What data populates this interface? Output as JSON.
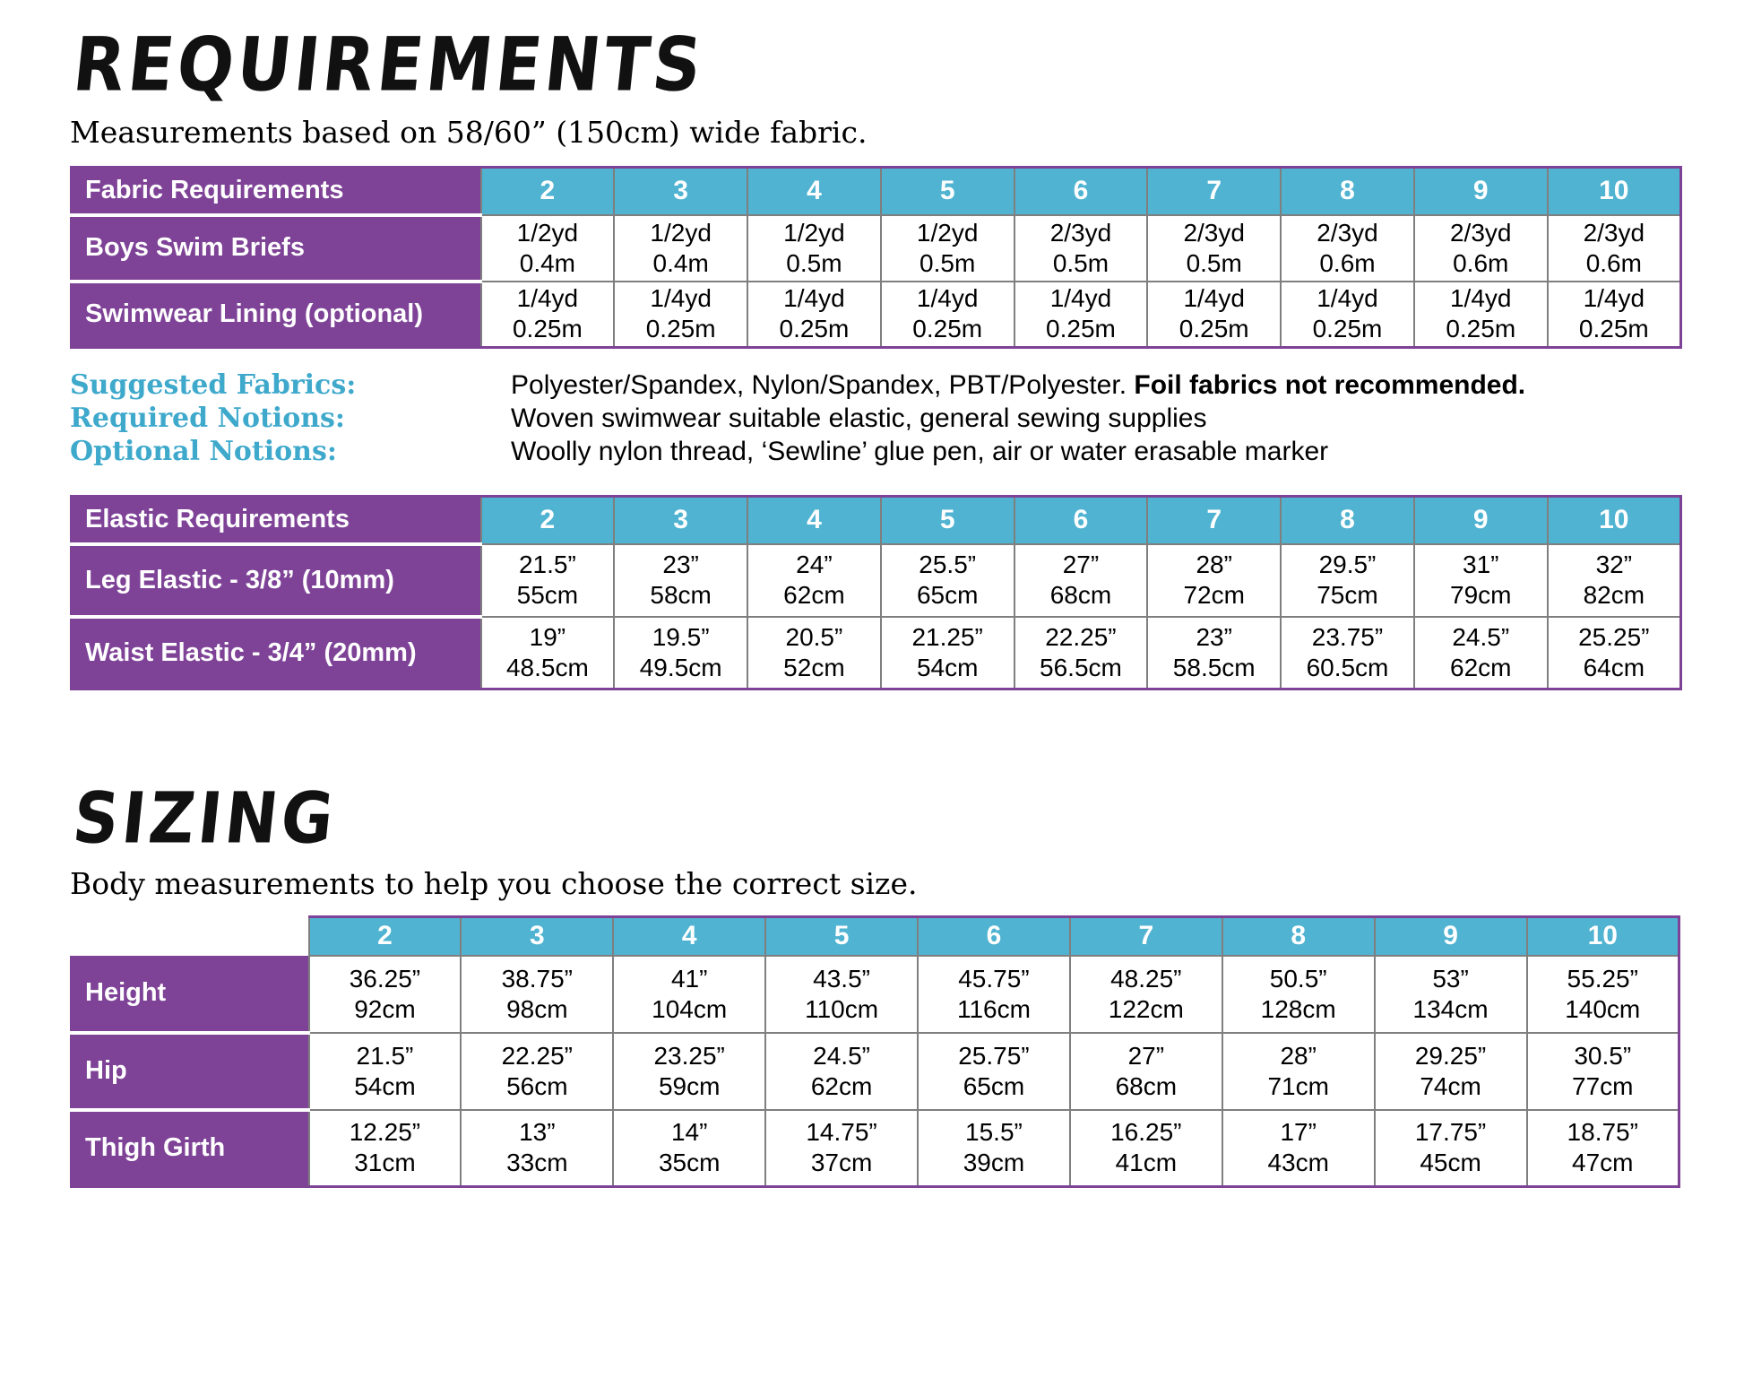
{
  "colors": {
    "purple": "#7e4397",
    "teal": "#4fb3d1",
    "label_teal": "#3fa9cc",
    "border_gray": "#7f7f7f"
  },
  "requirements": {
    "title": "REQUIREMENTS",
    "subtitle": "Measurements based on 58/60” (150cm) wide fabric."
  },
  "sizes": [
    "2",
    "3",
    "4",
    "5",
    "6",
    "7",
    "8",
    "9",
    "10"
  ],
  "fabric_table": {
    "header": "Fabric Requirements",
    "rows": [
      {
        "label": "Boys Swim Briefs",
        "cells": [
          [
            "1/2yd",
            "0.4m"
          ],
          [
            "1/2yd",
            "0.4m"
          ],
          [
            "1/2yd",
            "0.5m"
          ],
          [
            "1/2yd",
            "0.5m"
          ],
          [
            "2/3yd",
            "0.5m"
          ],
          [
            "2/3yd",
            "0.5m"
          ],
          [
            "2/3yd",
            "0.6m"
          ],
          [
            "2/3yd",
            "0.6m"
          ],
          [
            "2/3yd",
            "0.6m"
          ]
        ]
      },
      {
        "label": "Swimwear Lining (optional)",
        "cells": [
          [
            "1/4yd",
            "0.25m"
          ],
          [
            "1/4yd",
            "0.25m"
          ],
          [
            "1/4yd",
            "0.25m"
          ],
          [
            "1/4yd",
            "0.25m"
          ],
          [
            "1/4yd",
            "0.25m"
          ],
          [
            "1/4yd",
            "0.25m"
          ],
          [
            "1/4yd",
            "0.25m"
          ],
          [
            "1/4yd",
            "0.25m"
          ],
          [
            "1/4yd",
            "0.25m"
          ]
        ]
      }
    ]
  },
  "notions": [
    {
      "label": "Suggested Fabrics:",
      "text": "Polyester/Spandex, Nylon/Spandex, PBT/Polyester.  ",
      "bold": "Foil fabrics not recommended."
    },
    {
      "label": "Required Notions:",
      "text": "Woven swimwear suitable elastic, general sewing supplies",
      "bold": ""
    },
    {
      "label": "Optional Notions:",
      "text": "Woolly nylon thread, ‘Sewline’ glue pen, air or water erasable marker",
      "bold": ""
    }
  ],
  "elastic_table": {
    "header": "Elastic Requirements",
    "rows": [
      {
        "label": "Leg Elastic - 3/8” (10mm)",
        "cells": [
          [
            "21.5”",
            "55cm"
          ],
          [
            "23”",
            "58cm"
          ],
          [
            "24”",
            "62cm"
          ],
          [
            "25.5”",
            "65cm"
          ],
          [
            "27”",
            "68cm"
          ],
          [
            "28”",
            "72cm"
          ],
          [
            "29.5”",
            "75cm"
          ],
          [
            "31”",
            "79cm"
          ],
          [
            "32”",
            "82cm"
          ]
        ]
      },
      {
        "label": "Waist Elastic - 3/4” (20mm)",
        "cells": [
          [
            "19”",
            "48.5cm"
          ],
          [
            "19.5”",
            "49.5cm"
          ],
          [
            "20.5”",
            "52cm"
          ],
          [
            "21.25”",
            "54cm"
          ],
          [
            "22.25”",
            "56.5cm"
          ],
          [
            "23”",
            "58.5cm"
          ],
          [
            "23.75”",
            "60.5cm"
          ],
          [
            "24.5”",
            "62cm"
          ],
          [
            "25.25”",
            "64cm"
          ]
        ]
      }
    ]
  },
  "sizing": {
    "title": "SIZING",
    "subtitle": "Body measurements to help you choose the correct size."
  },
  "sizing_table": {
    "rows": [
      {
        "label": "Height",
        "cells": [
          [
            "36.25”",
            "92cm"
          ],
          [
            "38.75”",
            "98cm"
          ],
          [
            "41”",
            "104cm"
          ],
          [
            "43.5”",
            "110cm"
          ],
          [
            "45.75”",
            "116cm"
          ],
          [
            "48.25”",
            "122cm"
          ],
          [
            "50.5”",
            "128cm"
          ],
          [
            "53”",
            "134cm"
          ],
          [
            "55.25”",
            "140cm"
          ]
        ]
      },
      {
        "label": "Hip",
        "cells": [
          [
            "21.5”",
            "54cm"
          ],
          [
            "22.25”",
            "56cm"
          ],
          [
            "23.25”",
            "59cm"
          ],
          [
            "24.5”",
            "62cm"
          ],
          [
            "25.75”",
            "65cm"
          ],
          [
            "27”",
            "68cm"
          ],
          [
            "28”",
            "71cm"
          ],
          [
            "29.25”",
            "74cm"
          ],
          [
            "30.5”",
            "77cm"
          ]
        ]
      },
      {
        "label": "Thigh Girth",
        "cells": [
          [
            "12.25”",
            "31cm"
          ],
          [
            "13”",
            "33cm"
          ],
          [
            "14”",
            "35cm"
          ],
          [
            "14.75”",
            "37cm"
          ],
          [
            "15.5”",
            "39cm"
          ],
          [
            "16.25”",
            "41cm"
          ],
          [
            "17”",
            "43cm"
          ],
          [
            "17.75”",
            "45cm"
          ],
          [
            "18.75”",
            "47cm"
          ]
        ]
      }
    ]
  }
}
